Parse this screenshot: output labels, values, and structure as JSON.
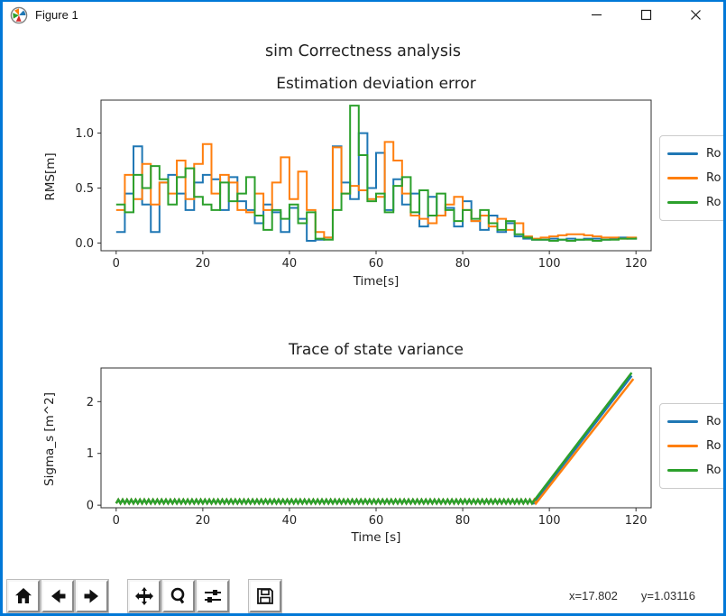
{
  "window": {
    "title": "Figure 1",
    "accent_color": "#0078d7",
    "control_icons": [
      "minimize-icon",
      "maximize-icon",
      "close-icon"
    ]
  },
  "figure": {
    "suptitle": "sim Correctness analysis",
    "background": "#ffffff"
  },
  "toolbar": {
    "icons": [
      "home-icon",
      "back-icon",
      "forward-icon",
      "pan-icon",
      "zoom-icon",
      "configure-subplots-icon",
      "save-icon"
    ],
    "status_x": "x=17.802",
    "status_y": "y=1.03116"
  },
  "chart_data": [
    {
      "type": "line",
      "title": "Estimation deviation error",
      "xlabel": "Time[s]",
      "ylabel": "RMS[m]",
      "xlim": [
        -3.5,
        123.5
      ],
      "ylim": [
        -0.07,
        1.3
      ],
      "xticks": [
        0,
        20,
        40,
        60,
        80,
        100,
        120
      ],
      "xtick_labels": [
        "0",
        "20",
        "40",
        "60",
        "80",
        "100",
        "120"
      ],
      "yticks": [
        0.0,
        0.5,
        1.0
      ],
      "ytick_labels": [
        "0.0",
        "0.5",
        "1.0"
      ],
      "drawstyle": "steps-post",
      "x_start": 0,
      "x_step": 2,
      "legend_position": "outside-right",
      "series": [
        {
          "name": "Ro",
          "color": "#1f77b4",
          "values": [
            0.1,
            0.45,
            0.88,
            0.35,
            0.1,
            0.55,
            0.62,
            0.45,
            0.3,
            0.55,
            0.62,
            0.58,
            0.3,
            0.6,
            0.38,
            0.3,
            0.18,
            0.35,
            0.28,
            0.1,
            0.32,
            0.22,
            0.02,
            0.03,
            0.05,
            0.88,
            0.55,
            0.4,
            1.0,
            0.5,
            0.82,
            0.3,
            0.58,
            0.35,
            0.45,
            0.15,
            0.42,
            0.25,
            0.32,
            0.15,
            0.38,
            0.2,
            0.12,
            0.25,
            0.1,
            0.18,
            0.06,
            0.04,
            0.03,
            0.03,
            0.04,
            0.03,
            0.04,
            0.03,
            0.04,
            0.04,
            0.03,
            0.04,
            0.05,
            0.04,
            0.05
          ]
        },
        {
          "name": "Ro",
          "color": "#ff7f0e",
          "values": [
            0.3,
            0.62,
            0.4,
            0.72,
            0.35,
            0.55,
            0.45,
            0.75,
            0.4,
            0.72,
            0.9,
            0.45,
            0.62,
            0.55,
            0.3,
            0.28,
            0.45,
            0.3,
            0.55,
            0.78,
            0.4,
            0.65,
            0.3,
            0.1,
            0.05,
            0.87,
            0.45,
            0.52,
            0.48,
            0.4,
            0.42,
            0.92,
            0.75,
            0.45,
            0.25,
            0.22,
            0.18,
            0.25,
            0.35,
            0.42,
            0.3,
            0.2,
            0.25,
            0.15,
            0.22,
            0.12,
            0.18,
            0.06,
            0.04,
            0.05,
            0.06,
            0.07,
            0.08,
            0.08,
            0.07,
            0.06,
            0.05,
            0.05,
            0.04,
            0.05,
            0.04
          ]
        },
        {
          "name": "Ro",
          "color": "#2ca02c",
          "values": [
            0.35,
            0.28,
            0.62,
            0.5,
            0.7,
            0.58,
            0.35,
            0.6,
            0.68,
            0.42,
            0.35,
            0.3,
            0.55,
            0.38,
            0.45,
            0.6,
            0.25,
            0.12,
            0.3,
            0.22,
            0.35,
            0.18,
            0.28,
            0.04,
            0.03,
            0.3,
            0.45,
            1.25,
            0.8,
            0.38,
            0.45,
            0.28,
            0.52,
            0.6,
            0.28,
            0.48,
            0.25,
            0.45,
            0.3,
            0.2,
            0.3,
            0.22,
            0.3,
            0.18,
            0.12,
            0.2,
            0.08,
            0.05,
            0.03,
            0.03,
            0.02,
            0.03,
            0.02,
            0.03,
            0.03,
            0.02,
            0.03,
            0.03,
            0.04,
            0.04,
            0.05
          ]
        }
      ]
    },
    {
      "type": "line",
      "title": "Trace of state variance",
      "xlabel": "Time [s]",
      "ylabel": "Sigma_s [m^2]",
      "xlim": [
        -3.5,
        123.5
      ],
      "ylim": [
        -0.05,
        2.65
      ],
      "xticks": [
        0,
        20,
        40,
        60,
        80,
        100,
        120
      ],
      "xtick_labels": [
        "0",
        "20",
        "40",
        "60",
        "80",
        "100",
        "120"
      ],
      "yticks": [
        0,
        1,
        2
      ],
      "ytick_labels": [
        "0",
        "1",
        "2"
      ],
      "legend_position": "outside-right",
      "series": [
        {
          "name": "Ro",
          "color": "#1f77b4",
          "flat": {
            "t0": 0,
            "t1": 96.2,
            "step": 0.5,
            "low": 0.035,
            "high": 0.105
          },
          "rise": {
            "t0": 96.4,
            "t1": 119.0,
            "v1": 2.5
          }
        },
        {
          "name": "Ro",
          "color": "#ff7f0e",
          "flat": {
            "t0": 0,
            "t1": 96.6,
            "step": 0.5,
            "low": 0.035,
            "high": 0.105
          },
          "rise": {
            "t0": 96.9,
            "t1": 119.4,
            "v1": 2.44
          }
        },
        {
          "name": "Ro",
          "color": "#2ca02c",
          "flat": {
            "t0": 0,
            "t1": 96.0,
            "step": 0.5,
            "low": 0.035,
            "high": 0.105
          },
          "rise": {
            "t0": 96.0,
            "t1": 119.0,
            "v1": 2.56
          }
        }
      ]
    }
  ]
}
